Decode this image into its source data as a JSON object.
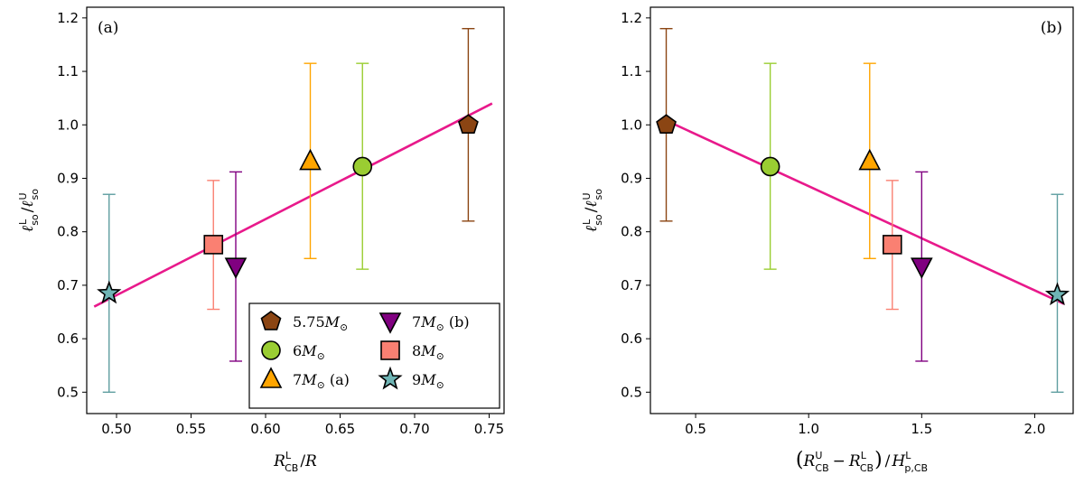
{
  "chart_data": [
    {
      "type": "scatter",
      "panel_label": "(a)",
      "xlabel": "R_CB^L / R",
      "ylabel": "ℓ_so^L / ℓ_so^U",
      "xlim": [
        0.48,
        0.76
      ],
      "ylim": [
        0.46,
        1.22
      ],
      "xticks": [
        "0.50",
        "0.55",
        "0.60",
        "0.65",
        "0.70",
        "0.75"
      ],
      "xtick_values": [
        0.5,
        0.55,
        0.6,
        0.65,
        0.7,
        0.75
      ],
      "yticks": [
        "0.5",
        "0.6",
        "0.7",
        "0.8",
        "0.9",
        "1.0",
        "1.1",
        "1.2"
      ],
      "ytick_values": [
        0.5,
        0.6,
        0.7,
        0.8,
        0.9,
        1.0,
        1.1,
        1.2
      ],
      "fit_line": {
        "x": [
          0.485,
          0.752
        ],
        "y": [
          0.66,
          1.04
        ],
        "color": "#e8198b"
      },
      "series": [
        {
          "name": "5.75M⊙",
          "marker": "pentagon",
          "color": "#8b4513",
          "bar_color": "#8b4513",
          "x": 0.736,
          "y": 1.0,
          "y_low": 0.82,
          "y_high": 1.18
        },
        {
          "name": "6M⊙",
          "marker": "circle",
          "color": "#9acd32",
          "bar_color": "#9acd32",
          "x": 0.665,
          "y": 0.922,
          "y_low": 0.73,
          "y_high": 1.115
        },
        {
          "name": "7M⊙ (a)",
          "marker": "triangle-up",
          "color": "#ffa500",
          "bar_color": "#ffa500",
          "x": 0.63,
          "y": 0.932,
          "y_low": 0.75,
          "y_high": 1.115
        },
        {
          "name": "7M⊙ (b)",
          "marker": "triangle-down",
          "color": "#800080",
          "bar_color": "#800080",
          "x": 0.58,
          "y": 0.735,
          "y_low": 0.558,
          "y_high": 0.912
        },
        {
          "name": "8M⊙",
          "marker": "square",
          "color": "#fa8072",
          "bar_color": "#fa8072",
          "x": 0.565,
          "y": 0.776,
          "y_low": 0.655,
          "y_high": 0.896
        },
        {
          "name": "9M⊙",
          "marker": "star",
          "color": "#5f9ea0",
          "fill": "#6fb5b5",
          "bar_color": "#5f9ea0",
          "x": 0.495,
          "y": 0.685,
          "y_low": 0.5,
          "y_high": 0.87
        }
      ],
      "legend": {
        "placement": "bottom-right",
        "entries": [
          "5.75",
          "6",
          "7",
          "7",
          "8",
          "9"
        ],
        "suffixes": [
          "",
          "",
          " (a)",
          " (b)",
          "",
          ""
        ]
      }
    },
    {
      "type": "scatter",
      "panel_label": "(b)",
      "xlabel": "(R_CB^U − R_CB^L) / H_p,CB^L",
      "ylabel": "ℓ_so^L / ℓ_so^U",
      "xlim": [
        0.3,
        2.17
      ],
      "ylim": [
        0.46,
        1.22
      ],
      "xticks": [
        "0.5",
        "1.0",
        "1.5",
        "2.0"
      ],
      "xtick_values": [
        0.5,
        1.0,
        1.5,
        2.0
      ],
      "yticks": [
        "0.5",
        "0.6",
        "0.7",
        "0.8",
        "0.9",
        "1.0",
        "1.1",
        "1.2"
      ],
      "ytick_values": [
        0.5,
        0.6,
        0.7,
        0.8,
        0.9,
        1.0,
        1.1,
        1.2
      ],
      "fit_line": {
        "x": [
          0.36,
          2.13
        ],
        "y": [
          1.01,
          0.665
        ],
        "color": "#e8198b"
      },
      "series": [
        {
          "name": "5.75M⊙",
          "marker": "pentagon",
          "color": "#8b4513",
          "bar_color": "#8b4513",
          "x": 0.37,
          "y": 1.0,
          "y_low": 0.82,
          "y_high": 1.18
        },
        {
          "name": "6M⊙",
          "marker": "circle",
          "color": "#9acd32",
          "bar_color": "#9acd32",
          "x": 0.83,
          "y": 0.922,
          "y_low": 0.73,
          "y_high": 1.115
        },
        {
          "name": "7M⊙ (a)",
          "marker": "triangle-up",
          "color": "#ffa500",
          "bar_color": "#ffa500",
          "x": 1.27,
          "y": 0.932,
          "y_low": 0.75,
          "y_high": 1.115
        },
        {
          "name": "7M⊙ (b)",
          "marker": "triangle-down",
          "color": "#800080",
          "bar_color": "#800080",
          "x": 1.5,
          "y": 0.735,
          "y_low": 0.558,
          "y_high": 0.912
        },
        {
          "name": "8M⊙",
          "marker": "square",
          "color": "#fa8072",
          "bar_color": "#fa8072",
          "x": 1.37,
          "y": 0.776,
          "y_low": 0.655,
          "y_high": 0.896
        },
        {
          "name": "9M⊙",
          "marker": "star",
          "color": "#5f9ea0",
          "fill": "#6fb5b5",
          "bar_color": "#5f9ea0",
          "x": 2.1,
          "y": 0.682,
          "y_low": 0.5,
          "y_high": 0.87
        }
      ]
    }
  ]
}
